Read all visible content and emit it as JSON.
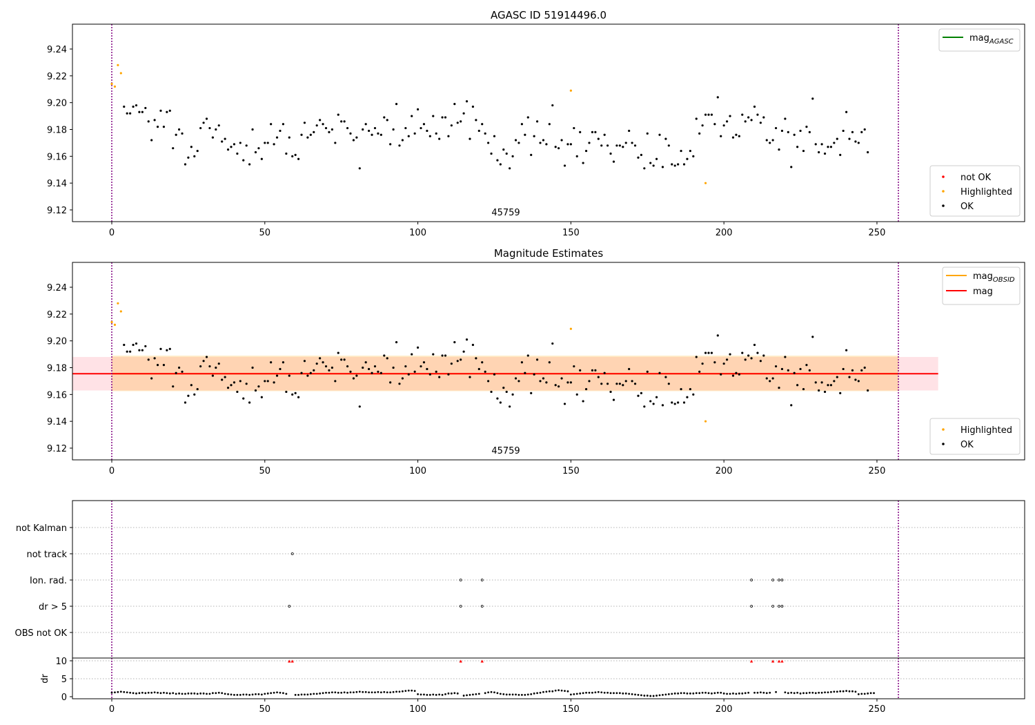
{
  "chart_data": [
    {
      "type": "scatter",
      "title": "AGASC ID 51914496.0",
      "obsid_label": "45759",
      "ylim": [
        9.11,
        9.26
      ],
      "xlim": [
        -12.8,
        297
      ],
      "yticks": [
        "9.12",
        "9.14",
        "9.16",
        "9.18",
        "9.20",
        "9.22",
        "9.24"
      ],
      "xticks": [
        "0",
        "50",
        "100",
        "150",
        "200",
        "250"
      ],
      "vlines": [
        0,
        257
      ],
      "legend_lines": [
        {
          "main": "mag",
          "sub": "AGASC",
          "color": "#008000"
        }
      ],
      "legend_markers": [
        {
          "label": "not OK",
          "color": "#ff0000"
        },
        {
          "label": "Highlighted",
          "color": "#ffa500"
        },
        {
          "label": "OK",
          "color": "#000000"
        }
      ],
      "series": [
        {
          "name": "Highlighted",
          "points": [
            [
              0,
              9.214
            ],
            [
              1,
              9.212
            ],
            [
              2,
              9.228
            ],
            [
              3,
              9.222
            ],
            [
              150,
              9.209
            ],
            [
              194,
              9.14
            ]
          ]
        }
      ]
    },
    {
      "type": "scatter",
      "title": "Magnitude Estimates",
      "obsid_label": "45759",
      "ylim": [
        9.11,
        9.26
      ],
      "xlim": [
        -12.8,
        297
      ],
      "yticks": [
        "9.12",
        "9.14",
        "9.16",
        "9.18",
        "9.20",
        "9.22",
        "9.24"
      ],
      "xticks": [
        "0",
        "50",
        "100",
        "150",
        "200",
        "250"
      ],
      "vlines": [
        0,
        257
      ],
      "mag_line": 9.1755,
      "mag_line_x": [
        -12.8,
        270
      ],
      "band_outer": [
        9.163,
        9.188
      ],
      "band_inner": [
        9.1625,
        9.189
      ],
      "band_inner_x": [
        0,
        257
      ],
      "legend_lines": [
        {
          "main": "mag",
          "sub": "OBSID",
          "color": "#ffa500"
        },
        {
          "main": "mag",
          "sub": "",
          "color": "#ff0000"
        }
      ],
      "legend_markers": [
        {
          "label": "Highlighted",
          "color": "#ffa500"
        },
        {
          "label": "OK",
          "color": "#000000"
        }
      ]
    },
    {
      "type": "scatter",
      "title": "",
      "flag_categories": [
        "not Kalman",
        "not track",
        "Ion. rad.",
        "dr > 5",
        "OBS not OK"
      ],
      "flag_points": {
        "not track": [
          59
        ],
        "Ion. rad.": [
          114,
          121,
          209,
          216,
          218,
          219
        ],
        "dr > 5": [
          58,
          114,
          121,
          209,
          216,
          218,
          219
        ]
      },
      "dr_ylabel": "dr",
      "dr_ylim": [
        -0.5,
        10.5
      ],
      "dr_yticks": [
        "0",
        "5",
        "10"
      ],
      "dr_high": [
        58,
        59,
        114,
        121,
        209,
        216,
        218,
        219
      ],
      "xticks": [
        "0",
        "50",
        "100",
        "150",
        "200",
        "250"
      ],
      "vlines": [
        0,
        257
      ]
    }
  ],
  "ok_mag": [
    9.197,
    9.192,
    9.192,
    9.197,
    9.198,
    9.193,
    9.193,
    9.196,
    9.186,
    9.172,
    9.187,
    9.182,
    9.194,
    9.182,
    9.193,
    9.194,
    9.166,
    9.176,
    9.18,
    9.177,
    9.154,
    9.159,
    9.167,
    9.16,
    9.164,
    9.181,
    9.185,
    9.188,
    9.181,
    9.174,
    9.18,
    9.183,
    9.171,
    9.173,
    9.165,
    9.167,
    9.169,
    9.162,
    9.17,
    9.157,
    9.168,
    9.154,
    9.18,
    9.163,
    9.166,
    9.158,
    9.17,
    9.17,
    9.184,
    9.169,
    9.174,
    9.179,
    9.184,
    9.162,
    9.174,
    9.16,
    9.161,
    9.158,
    9.176,
    9.185,
    9.174,
    9.176,
    9.178,
    9.183,
    9.187,
    9.184,
    9.181,
    9.178,
    9.18,
    9.17,
    9.191,
    9.186,
    9.186,
    9.181,
    9.177,
    9.172,
    9.174,
    9.151,
    9.18,
    9.184,
    9.179,
    9.176,
    9.181,
    9.177,
    9.176,
    9.189,
    9.187,
    9.169,
    9.18,
    9.199,
    9.168,
    9.172,
    9.181,
    9.175,
    9.19,
    9.177,
    9.195,
    9.181,
    9.184,
    9.179,
    9.175,
    9.19,
    9.177,
    9.173,
    9.189,
    9.189,
    9.175,
    9.183,
    9.199,
    9.185,
    9.186,
    9.192,
    9.201,
    9.173,
    9.197,
    9.187,
    9.179,
    9.184,
    9.177,
    9.17,
    9.162,
    9.175,
    9.157,
    9.154,
    9.165,
    9.162,
    9.151,
    9.16,
    9.172,
    9.17,
    9.184,
    9.176,
    9.189,
    9.161,
    9.175,
    9.186,
    9.17,
    9.172,
    9.169,
    9.184,
    9.198,
    9.167,
    9.166,
    9.172,
    9.153,
    9.169,
    9.169,
    9.181,
    9.16,
    9.178,
    9.155,
    9.164,
    9.17,
    9.178,
    9.178,
    9.173,
    9.168,
    9.176,
    9.168,
    9.162,
    9.156,
    9.168,
    9.168,
    9.167,
    9.17,
    9.179,
    9.17,
    9.168,
    9.159,
    9.161,
    9.151,
    9.177,
    9.155,
    9.153,
    9.158,
    9.176,
    9.152,
    9.173,
    9.168,
    9.154,
    9.153,
    9.154,
    9.164,
    9.154,
    9.158,
    9.164,
    9.16,
    9.188,
    9.177,
    9.183,
    9.191,
    9.191,
    9.191,
    9.184,
    9.204,
    9.175,
    9.183,
    9.186,
    9.19,
    9.174,
    9.176,
    9.175,
    9.191,
    9.186,
    9.189,
    9.187,
    9.197,
    9.191,
    9.185,
    9.189,
    9.172,
    9.17,
    9.172,
    9.181,
    9.165,
    9.179,
    9.188,
    9.178,
    9.152,
    9.176,
    9.167,
    9.179,
    9.164,
    9.182,
    9.178,
    9.203,
    9.169,
    9.163,
    9.169,
    9.162,
    9.167,
    9.167,
    9.17,
    9.173,
    9.161,
    9.179,
    9.193,
    9.173,
    9.178,
    9.171,
    9.17,
    9.178,
    9.18,
    9.163
  ],
  "dr_values": [
    1.1,
    1.2,
    1.3,
    1.4,
    1.3,
    1.2,
    1.1,
    1.0,
    0.9,
    1.0,
    1.1,
    1.0,
    1.1,
    1.1,
    1.2,
    1.1,
    1.0,
    1.1,
    1.0,
    0.9,
    1.0,
    0.8,
    0.9,
    0.8,
    0.8,
    0.9,
    0.9,
    0.9,
    0.8,
    0.9,
    0.9,
    0.8,
    0.8,
    1.0,
    1.0,
    1.1,
    1.0,
    0.8,
    0.7,
    0.6,
    0.5,
    0.5,
    0.5,
    0.6,
    0.6,
    0.5,
    0.6,
    0.7,
    0.7,
    0.6,
    0.8,
    0.9,
    1.0,
    1.1,
    1.2,
    1.1,
    1.0,
    0.8,
    0.3,
    0.4,
    0.5,
    0.5,
    0.6,
    0.6,
    0.6,
    0.7,
    0.8,
    0.8,
    0.9,
    1.0,
    1.1,
    1.1,
    1.2,
    1.2,
    1.1,
    1.1,
    1.2,
    1.1,
    1.2,
    1.2,
    1.3,
    1.4,
    1.3,
    1.3,
    1.2,
    1.2,
    1.2,
    1.3,
    1.2,
    1.3,
    1.2,
    1.2,
    1.3,
    1.4,
    1.4,
    1.5,
    1.6,
    1.7,
    1.7,
    1.6,
    0.7,
    0.6,
    0.6,
    0.5,
    0.5,
    0.6,
    0.5,
    0.6,
    0.5,
    0.7,
    0.9,
    0.9,
    1.0,
    0.9,
    0.8,
    0.3,
    0.4,
    0.5,
    0.6,
    0.7,
    0.8,
    0.8,
    1.0,
    1.2,
    1.3,
    1.2,
    1.0,
    0.8,
    0.7,
    0.6,
    0.6,
    0.6,
    0.6,
    0.5,
    0.5,
    0.5,
    0.6,
    0.7,
    0.9,
    1.0,
    1.1,
    1.3,
    1.4,
    1.5,
    1.5,
    1.7,
    1.8,
    1.7,
    1.6,
    1.5,
    0.6,
    0.7,
    0.8,
    0.9,
    1.0,
    1.1,
    1.1,
    1.1,
    1.2,
    1.3,
    1.2,
    1.1,
    1.1,
    1.0,
    1.0,
    1.0,
    1.0,
    0.9,
    0.9,
    0.8,
    0.7,
    0.6,
    0.5,
    0.4,
    0.3,
    0.3,
    0.2,
    0.2,
    0.3,
    0.4,
    0.5,
    0.6,
    0.7,
    0.8,
    0.9,
    0.9,
    1.0,
    1.0,
    0.9,
    0.9,
    0.9,
    1.0,
    1.0,
    1.1,
    1.1,
    1.0,
    0.9,
    1.0,
    1.1,
    1.1,
    0.9,
    0.8,
    0.8,
    0.9,
    0.8,
    0.9,
    0.9,
    1.0,
    1.1,
    1.0,
    1.1,
    1.1,
    1.2,
    1.1,
    1.0,
    1.1,
    1.2,
    1.3,
    1.4,
    1.3,
    1.2,
    1.0,
    1.1,
    1.0,
    1.1,
    0.9,
    1.0,
    1.0,
    1.1,
    1.1,
    1.0,
    1.1,
    1.1,
    1.2,
    1.2,
    1.3,
    1.4,
    1.4,
    1.5,
    1.5,
    1.6,
    1.5,
    1.5,
    1.4,
    0.7,
    0.8,
    0.8,
    0.9,
    1.0,
    1.0
  ]
}
